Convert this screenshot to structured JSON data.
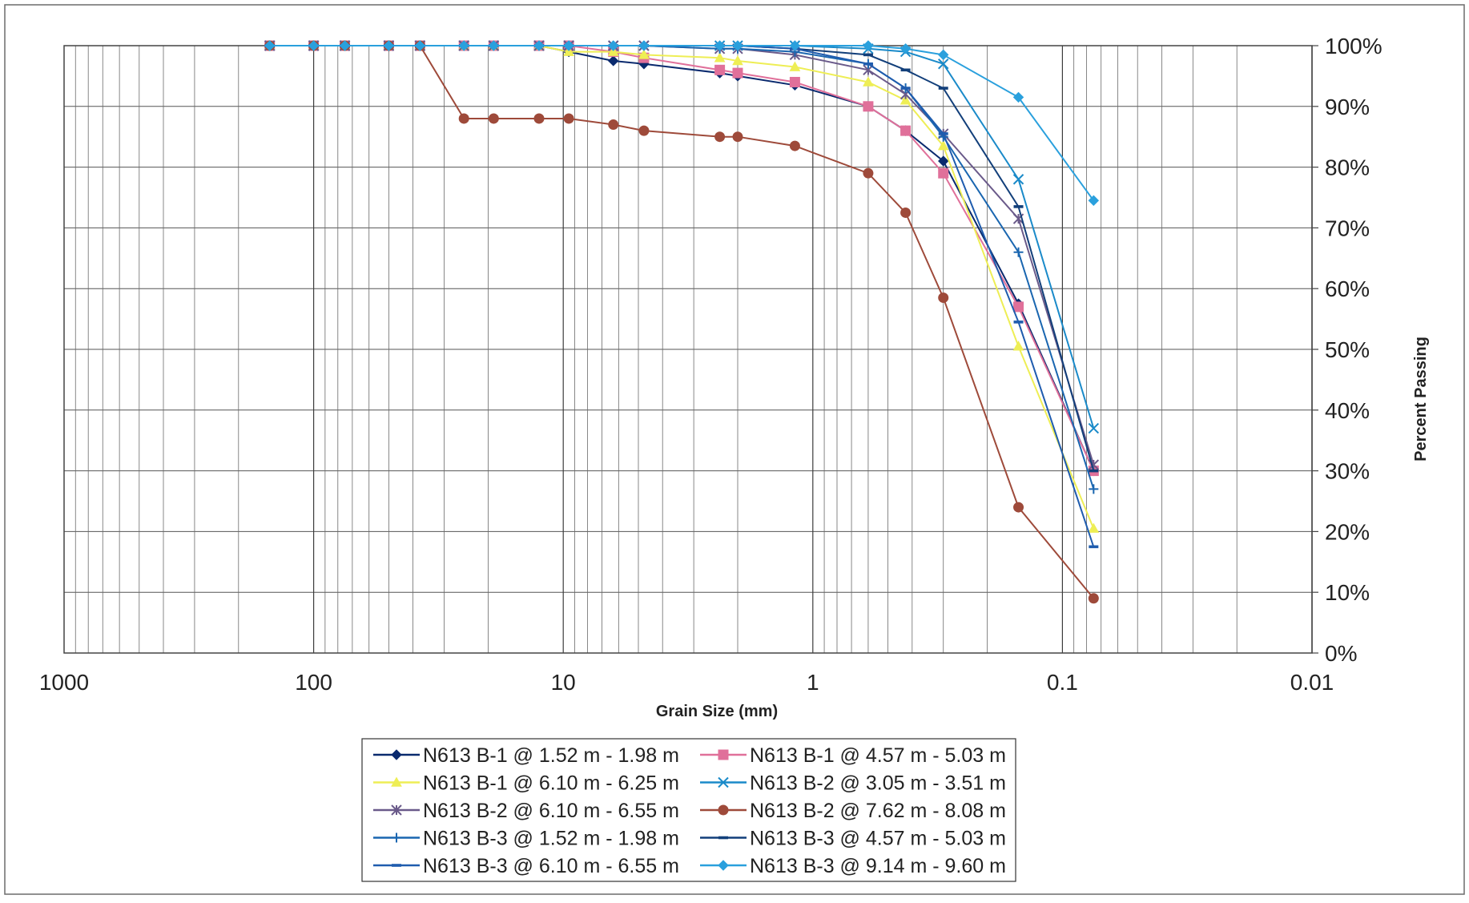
{
  "chart_data": {
    "type": "line",
    "title": "",
    "xlabel": "Grain Size (mm)",
    "ylabel": "Percent Passing",
    "x_scale": "log",
    "x_reversed": true,
    "xlim": [
      1000,
      0.01
    ],
    "ylim": [
      0,
      100
    ],
    "x_ticks": [
      1000,
      100,
      10,
      1,
      0.1,
      0.01
    ],
    "x_tick_labels": [
      "1000",
      "100",
      "10",
      "1",
      "0.1",
      "0.01"
    ],
    "y_ticks": [
      0,
      10,
      20,
      30,
      40,
      50,
      60,
      70,
      80,
      90,
      100
    ],
    "y_tick_labels": [
      "0%",
      "10%",
      "20%",
      "30%",
      "40%",
      "50%",
      "60%",
      "70%",
      "80%",
      "90%",
      "100%"
    ],
    "y_axis_position": "right",
    "grid": true,
    "legend_position": "bottom-center",
    "x": [
      150,
      100,
      75,
      50,
      37.5,
      25,
      19,
      12.5,
      9.5,
      6.3,
      4.75,
      2.36,
      2,
      1.18,
      0.6,
      0.425,
      0.3,
      0.15,
      0.075
    ],
    "series": [
      {
        "name": "N613 B-1 @ 1.52 m - 1.98 m",
        "color": "#0a2a6e",
        "marker": "diamond",
        "values": [
          100,
          100,
          100,
          100,
          100,
          100,
          100,
          100,
          99,
          97.5,
          97,
          95.5,
          95,
          93.5,
          90,
          86,
          81,
          57.5,
          30
        ]
      },
      {
        "name": "N613 B-1 @ 4.57 m - 5.03 m",
        "color": "#e0709a",
        "marker": "square",
        "values": [
          100,
          100,
          100,
          100,
          100,
          100,
          100,
          100,
          100,
          99,
          98,
          96,
          95.5,
          94,
          90,
          86,
          79,
          57,
          30
        ]
      },
      {
        "name": "N613 B-1 @ 6.10 m - 6.25 m",
        "color": "#eeee55",
        "marker": "triangle",
        "values": [
          100,
          100,
          100,
          100,
          100,
          100,
          100,
          100,
          99,
          99,
          98.5,
          98,
          97.5,
          96.5,
          94,
          91,
          83.5,
          50.5,
          20.5
        ]
      },
      {
        "name": "N613 B-2 @ 3.05 m - 3.51 m",
        "color": "#1a8ac9",
        "marker": "x",
        "values": [
          100,
          100,
          100,
          100,
          100,
          100,
          100,
          100,
          100,
          100,
          100,
          100,
          100,
          100,
          99.5,
          99,
          97,
          78,
          37
        ]
      },
      {
        "name": "N613 B-2 @ 6.10 m - 6.55 m",
        "color": "#6a5a8a",
        "marker": "star",
        "values": [
          100,
          100,
          100,
          100,
          100,
          100,
          100,
          100,
          100,
          100,
          100,
          99.5,
          99.5,
          98.5,
          96,
          92,
          85.5,
          71.5,
          31
        ]
      },
      {
        "name": "N613 B-2 @ 7.62 m - 8.08 m",
        "color": "#9e4a3a",
        "marker": "circle",
        "values": [
          100,
          100,
          100,
          100,
          100,
          88,
          88,
          88,
          88,
          87,
          86,
          85,
          85,
          83.5,
          79,
          72.5,
          58.5,
          24,
          9
        ]
      },
      {
        "name": "N613 B-3 @ 1.52 m - 1.98 m",
        "color": "#1a66b0",
        "marker": "plus",
        "values": [
          100,
          100,
          100,
          100,
          100,
          100,
          100,
          100,
          100,
          100,
          100,
          99.5,
          99.5,
          99,
          97,
          93,
          85,
          66,
          27
        ]
      },
      {
        "name": "N613 B-3 @ 4.57 m - 5.03 m",
        "color": "#123f7a",
        "marker": "dash",
        "values": [
          100,
          100,
          100,
          100,
          100,
          100,
          100,
          100,
          100,
          100,
          100,
          100,
          100,
          99.5,
          98.5,
          96,
          93,
          73.5,
          30
        ]
      },
      {
        "name": "N613 B-3 @ 6.10 m - 6.55 m",
        "color": "#1f5cae",
        "marker": "dash",
        "values": [
          100,
          100,
          100,
          100,
          100,
          100,
          100,
          100,
          100,
          100,
          100,
          100,
          100,
          99.5,
          97,
          93,
          85.5,
          54.5,
          17.5
        ]
      },
      {
        "name": "N613 B-3 @ 9.14 m - 9.60 m",
        "color": "#2aa0dd",
        "marker": "diamond",
        "values": [
          100,
          100,
          100,
          100,
          100,
          100,
          100,
          100,
          100,
          100,
          100,
          100,
          100,
          100,
          100,
          99.5,
          98.5,
          91.5,
          74.5
        ]
      }
    ]
  }
}
